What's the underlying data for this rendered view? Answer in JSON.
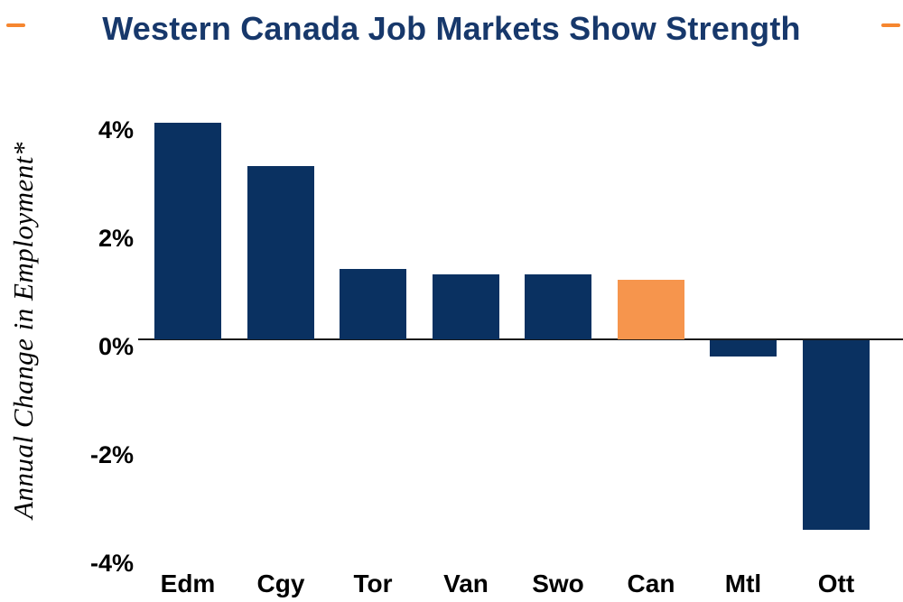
{
  "title": "Western Canada Job Markets Show Strength",
  "colors": {
    "bar_default": "#0A3161",
    "bar_highlight": "#F6954D",
    "title_text": "#17386B",
    "accent_dash": "#F6862F",
    "axis_line": "#1A1A1A"
  },
  "chart_data": {
    "type": "bar",
    "title": "Western Canada Job Markets Show Strength",
    "ylabel": "Annual Change in Employment*",
    "xlabel": "",
    "categories": [
      "Edm",
      "Cgy",
      "Tor",
      "Van",
      "Swo",
      "Can",
      "Mtl",
      "Ott"
    ],
    "values": [
      4.0,
      3.2,
      1.3,
      1.2,
      1.2,
      1.1,
      -0.3,
      -3.5
    ],
    "highlight_index": 5,
    "highlight_category": "Can",
    "ytick_labels": [
      "4%",
      "2%",
      "0%",
      "-2%",
      "-4%"
    ],
    "ytick_values": [
      4,
      2,
      0,
      -2,
      -4
    ],
    "ylim": [
      -4.6,
      4.6
    ],
    "grid": false,
    "legend": false,
    "zero_line": true
  }
}
